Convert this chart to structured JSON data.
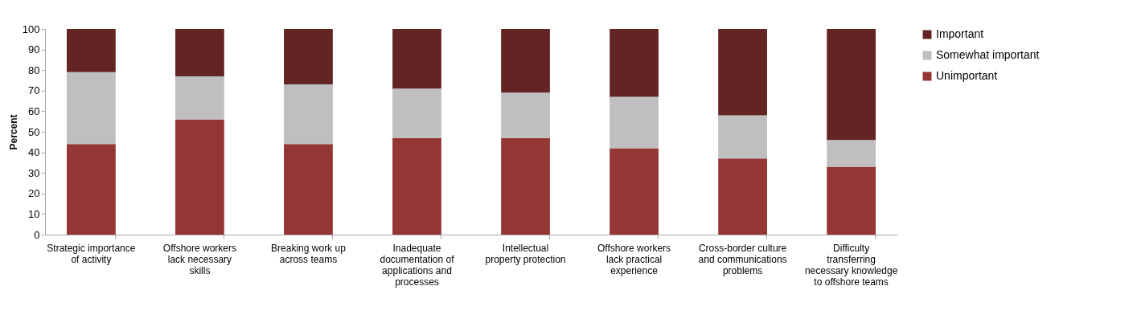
{
  "chart_data": {
    "type": "bar",
    "stacked": true,
    "ylabel": "Percent",
    "categories": [
      "Strategic importance of activity",
      "Offshore workers lack necessary skills",
      "Breaking work up across teams",
      "Inadequate documentation of applications and processes",
      "Intellectual property protection",
      "Offshore workers lack practical experience",
      "Cross-border culture and communications problems",
      "Difficulty transferring necessary knowledge to offshore teams"
    ],
    "series": [
      {
        "name": "Unimportant",
        "color": "#943634",
        "values": [
          44,
          56,
          44,
          47,
          47,
          42,
          37,
          33
        ]
      },
      {
        "name": "Somewhat important",
        "color": "#bfbfbf",
        "values": [
          35,
          21,
          29,
          24,
          22,
          25,
          21,
          13
        ]
      },
      {
        "name": "Important",
        "color": "#632523",
        "values": [
          21,
          23,
          27,
          29,
          31,
          33,
          42,
          54
        ]
      }
    ],
    "ylim": [
      0,
      100
    ],
    "yticks": [
      0,
      10,
      20,
      30,
      40,
      50,
      60,
      70,
      80,
      90,
      100
    ],
    "grid": false,
    "legend": "right"
  }
}
